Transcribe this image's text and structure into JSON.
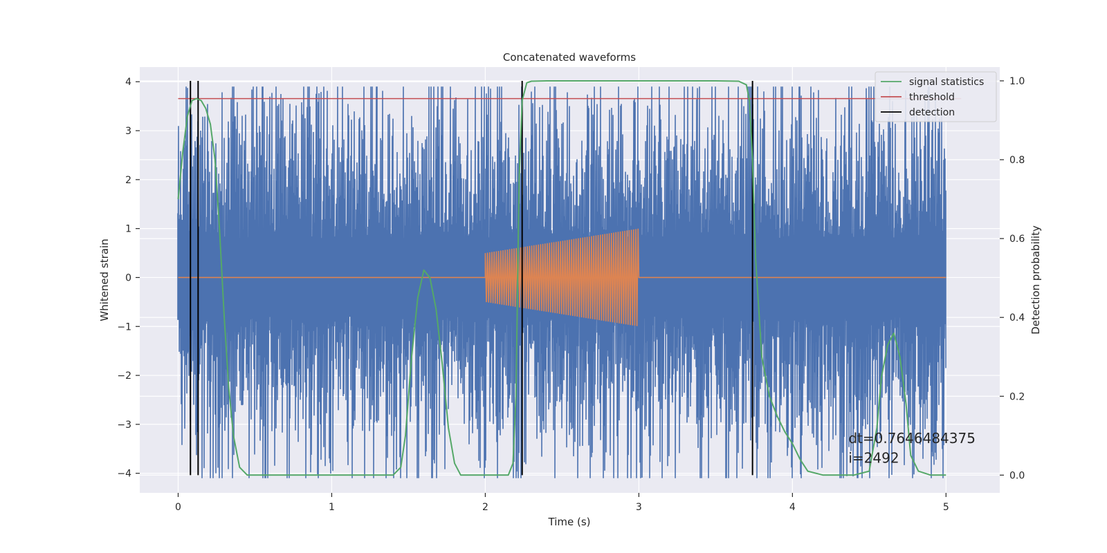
{
  "chart_data": {
    "type": "line",
    "title": "Concatenated waveforms",
    "xlabel": "Time (s)",
    "ylabel": "Whitened strain",
    "y2label": "Detection probability",
    "xlim": [
      -0.25,
      5.35
    ],
    "ylim": [
      -4.4,
      4.3
    ],
    "y2lim": [
      -0.045,
      1.035
    ],
    "x_ticks": [
      0,
      1,
      2,
      3,
      4,
      5
    ],
    "y_ticks": [
      -4,
      -3,
      -2,
      -1,
      0,
      1,
      2,
      3,
      4
    ],
    "y2_ticks": [
      0.0,
      0.2,
      0.4,
      0.6,
      0.8,
      1.0
    ],
    "x_tick_labels": [
      "0",
      "1",
      "2",
      "3",
      "4",
      "5"
    ],
    "y_tick_labels": [
      "−4",
      "−3",
      "−2",
      "−1",
      "0",
      "1",
      "2",
      "3",
      "4"
    ],
    "y2_tick_labels": [
      "0.0",
      "0.2",
      "0.4",
      "0.6",
      "0.8",
      "1.0"
    ],
    "grid": true,
    "legend_position": "top-right",
    "colors": {
      "background": "#eaeaf2",
      "grid": "#ffffff",
      "strain": "#4c72b0",
      "injection": "#dd8452",
      "signal_statistics": "#55a868",
      "threshold": "#c44e52",
      "detection": "#000000"
    },
    "series": [
      {
        "name": "",
        "axis": "left",
        "description_kind": "whitened noise trace",
        "x_range": [
          0,
          5
        ],
        "approx_amplitude": 3.0
      },
      {
        "name": "",
        "axis": "left",
        "description_kind": "injected chirp",
        "x_range": [
          0,
          5
        ],
        "chirp_start": 2.0,
        "chirp_end": 3.0,
        "chirp_amplitude_start": 0.5,
        "chirp_amplitude_end": 1.0
      },
      {
        "name": "signal statistics",
        "axis": "right",
        "x": [
          0.0,
          0.03,
          0.06,
          0.09,
          0.12,
          0.15,
          0.18,
          0.21,
          0.24,
          0.27,
          0.3,
          0.33,
          0.36,
          0.4,
          0.45,
          0.6,
          1.0,
          1.4,
          1.45,
          1.48,
          1.52,
          1.56,
          1.6,
          1.64,
          1.68,
          1.72,
          1.76,
          1.8,
          1.84,
          1.9,
          2.05,
          2.15,
          2.18,
          2.2,
          2.22,
          2.24,
          2.27,
          2.3,
          2.4,
          2.6,
          3.0,
          3.5,
          3.65,
          3.7,
          3.72,
          3.74,
          3.76,
          3.8,
          3.85,
          3.9,
          3.95,
          4.0,
          4.05,
          4.1,
          4.2,
          4.4,
          4.5,
          4.55,
          4.58,
          4.62,
          4.66,
          4.7,
          4.74,
          4.77,
          4.82,
          4.9,
          5.0
        ],
        "values": [
          0.7,
          0.82,
          0.91,
          0.95,
          0.955,
          0.95,
          0.93,
          0.89,
          0.8,
          0.62,
          0.4,
          0.22,
          0.1,
          0.02,
          0.0,
          0.0,
          0.0,
          0.0,
          0.02,
          0.1,
          0.3,
          0.45,
          0.52,
          0.5,
          0.42,
          0.28,
          0.12,
          0.03,
          0.0,
          0.0,
          0.0,
          0.0,
          0.03,
          0.2,
          0.75,
          0.95,
          0.995,
          0.999,
          1.0,
          1.0,
          1.0,
          1.0,
          0.999,
          0.99,
          0.95,
          0.8,
          0.55,
          0.3,
          0.2,
          0.15,
          0.11,
          0.08,
          0.04,
          0.01,
          0.0,
          0.0,
          0.01,
          0.12,
          0.25,
          0.33,
          0.36,
          0.3,
          0.18,
          0.05,
          0.01,
          0.0,
          0.0
        ]
      },
      {
        "name": "threshold",
        "axis": "right",
        "x": [
          0,
          5
        ],
        "values": [
          0.955,
          0.955
        ]
      },
      {
        "name": "detection",
        "axis": "right",
        "x_positions": [
          0.08,
          0.13,
          2.24,
          3.74
        ],
        "y_range": [
          0.0,
          1.0
        ]
      }
    ],
    "annotations": [
      {
        "text": "dt=0.7646484375",
        "x": 4.5,
        "y": -3.3
      },
      {
        "text": " i=2492",
        "x": 4.5,
        "y": -3.7
      }
    ]
  }
}
